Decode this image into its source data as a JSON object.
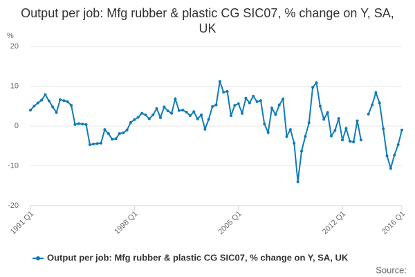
{
  "chart_data": {
    "type": "line",
    "title": "Output per job: Mfg rubber & plastic CG SIC07, % change on Y, SA, UK",
    "ylabel": "%",
    "source": "Source:",
    "categories": [
      "1991 Q1",
      null,
      null,
      null,
      null,
      null,
      null,
      null,
      null,
      null,
      null,
      null,
      null,
      null,
      null,
      null,
      null,
      null,
      null,
      null,
      null,
      null,
      null,
      null,
      null,
      null,
      null,
      null,
      "1998 Q1",
      null,
      null,
      null,
      null,
      null,
      null,
      null,
      null,
      null,
      null,
      null,
      null,
      null,
      null,
      null,
      null,
      null,
      null,
      null,
      null,
      null,
      null,
      null,
      null,
      null,
      null,
      null,
      "2005 Q1",
      null,
      null,
      null,
      null,
      null,
      null,
      null,
      null,
      null,
      null,
      null,
      null,
      null,
      null,
      null,
      null,
      null,
      null,
      null,
      null,
      null,
      null,
      null,
      null,
      null,
      null,
      null,
      "2012 Q1",
      null,
      null,
      null,
      null,
      null,
      null,
      null,
      null,
      null,
      null,
      null,
      null,
      null,
      null,
      null,
      "2016 Q1"
    ],
    "series": [
      {
        "name": "Output per job: Mfg rubber & plastic CG SIC07, % change on Y, SA, UK",
        "color": "#0e7bb8",
        "values": [
          4.0,
          5.0,
          5.8,
          6.5,
          7.9,
          6.3,
          4.8,
          3.4,
          6.6,
          6.4,
          6.1,
          5.2,
          0.4,
          0.6,
          0.5,
          0.4,
          -4.7,
          -4.5,
          -4.4,
          -4.3,
          -0.9,
          -1.9,
          -3.3,
          -3.2,
          -1.9,
          -1.7,
          -1.0,
          0.9,
          1.6,
          2.2,
          3.2,
          2.8,
          1.8,
          2.8,
          4.4,
          2.1,
          4.8,
          3.8,
          3.2,
          6.8,
          3.9,
          4.0,
          3.5,
          2.6,
          3.6,
          1.8,
          2.8,
          -0.8,
          1.7,
          4.9,
          5.3,
          11.2,
          8.5,
          8.7,
          2.6,
          5.2,
          5.6,
          3.2,
          7.0,
          5.8,
          7.5,
          6.1,
          6.4,
          0.5,
          -1.6,
          4.5,
          2.9,
          5.3,
          6.8,
          -2.6,
          -0.9,
          -4.3,
          -14.0,
          -6.3,
          -2.6,
          0.8,
          9.7,
          10.9,
          5.0,
          1.7,
          3.4,
          -2.5,
          -1.1,
          1.9,
          -3.5,
          -0.6,
          -3.8,
          -4.0,
          1.3,
          -3.5,
          null,
          3.0,
          5.3,
          8.4,
          5.8,
          -0.7,
          -7.5,
          -10.6,
          -7.3,
          -4.7,
          -1.0
        ]
      }
    ],
    "ylim": [
      -20,
      20
    ],
    "yticks": [
      -20,
      -10,
      0,
      10,
      20
    ],
    "grid": true
  }
}
